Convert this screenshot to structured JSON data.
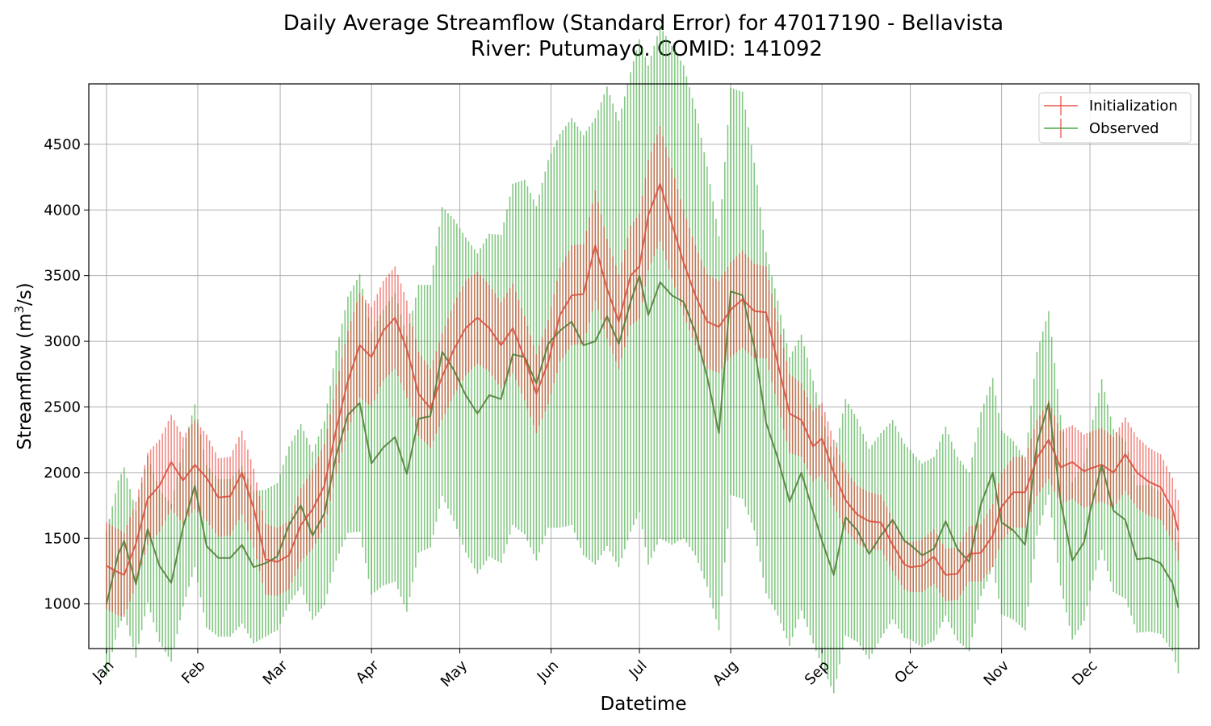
{
  "chart_data": {
    "type": "line",
    "title_line1": "Daily Average Streamflow (Standard Error) for 47017190 - Bellavista",
    "title_line2": "River: Putumayo. COMID: 141092",
    "xlabel": "Datetime",
    "ylabel": "Streamflow (m",
    "ylabel_sup": "3",
    "ylabel_end": "/s)",
    "ylim": [
      660,
      4960
    ],
    "yticks": [
      1000,
      1500,
      2000,
      2500,
      3000,
      3500,
      4000,
      4500
    ],
    "ytick_labels": [
      "1000",
      "1500",
      "2000",
      "2500",
      "3000",
      "3500",
      "4000",
      "4500"
    ],
    "xlim_days": [
      -6,
      371
    ],
    "month_days": [
      0,
      31,
      59,
      90,
      120,
      151,
      181,
      212,
      243,
      273,
      304,
      334
    ],
    "months": [
      "Jan",
      "Feb",
      "Mar",
      "Apr",
      "May",
      "Jun",
      "Jul",
      "Aug",
      "Sep",
      "Oct",
      "Nov",
      "Dec"
    ],
    "grid": true,
    "legend_position": "top-right",
    "series": [
      {
        "name": "Initialization",
        "color": "#e8463c",
        "x": [
          0,
          4,
          6,
          10,
          14,
          18,
          22,
          26,
          30,
          34,
          38,
          42,
          46,
          50,
          54,
          58,
          62,
          66,
          70,
          74,
          78,
          82,
          86,
          90,
          94,
          98,
          102,
          106,
          110,
          114,
          118,
          122,
          126,
          130,
          134,
          138,
          142,
          146,
          150,
          154,
          158,
          162,
          166,
          170,
          174,
          178,
          181,
          184,
          188,
          192,
          196,
          200,
          204,
          208,
          212,
          216,
          220,
          224,
          228,
          232,
          236,
          240,
          243,
          247,
          251,
          255,
          259,
          263,
          267,
          271,
          273,
          277,
          281,
          285,
          289,
          293,
          297,
          301,
          304,
          308,
          312,
          316,
          320,
          324,
          328,
          332,
          334,
          338,
          342,
          346,
          350,
          354,
          358,
          362,
          364
        ],
        "values": [
          1290,
          1240,
          1220,
          1460,
          1800,
          1900,
          2080,
          1940,
          2060,
          1960,
          1810,
          1820,
          2000,
          1730,
          1340,
          1320,
          1370,
          1600,
          1720,
          1900,
          2330,
          2700,
          2970,
          2880,
          3080,
          3180,
          2940,
          2600,
          2490,
          2730,
          2940,
          3100,
          3180,
          3100,
          2970,
          3100,
          2870,
          2600,
          2840,
          3200,
          3350,
          3360,
          3730,
          3400,
          3150,
          3500,
          3570,
          3960,
          4200,
          3900,
          3600,
          3350,
          3150,
          3110,
          3240,
          3320,
          3230,
          3220,
          2830,
          2450,
          2400,
          2200,
          2260,
          2000,
          1790,
          1680,
          1630,
          1620,
          1450,
          1300,
          1280,
          1290,
          1360,
          1220,
          1230,
          1380,
          1390,
          1520,
          1740,
          1850,
          1850,
          2110,
          2250,
          2040,
          2080,
          2010,
          2030,
          2060,
          2000,
          2140,
          2000,
          1930,
          1890,
          1720,
          1560
        ],
        "error": [
          330,
          330,
          320,
          320,
          350,
          350,
          360,
          330,
          340,
          330,
          300,
          300,
          320,
          300,
          270,
          260,
          260,
          280,
          300,
          320,
          340,
          380,
          400,
          380,
          380,
          390,
          370,
          320,
          300,
          330,
          350,
          360,
          350,
          330,
          330,
          340,
          320,
          300,
          320,
          360,
          380,
          380,
          420,
          380,
          360,
          380,
          400,
          420,
          440,
          420,
          400,
          380,
          360,
          350,
          360,
          370,
          360,
          350,
          320,
          300,
          280,
          270,
          270,
          250,
          230,
          220,
          220,
          210,
          200,
          190,
          190,
          200,
          210,
          200,
          200,
          210,
          220,
          240,
          260,
          270,
          270,
          290,
          300,
          280,
          280,
          280,
          280,
          280,
          270,
          280,
          270,
          260,
          250,
          240,
          230
        ]
      },
      {
        "name": "Observed",
        "color": "#3aa63a",
        "x": [
          0,
          4,
          6,
          10,
          14,
          18,
          22,
          26,
          30,
          34,
          38,
          42,
          46,
          50,
          54,
          58,
          62,
          66,
          70,
          74,
          78,
          82,
          86,
          90,
          94,
          98,
          102,
          106,
          110,
          114,
          118,
          122,
          126,
          130,
          134,
          138,
          142,
          146,
          150,
          154,
          158,
          162,
          166,
          170,
          174,
          178,
          181,
          184,
          188,
          192,
          196,
          200,
          204,
          208,
          212,
          216,
          220,
          224,
          228,
          232,
          236,
          240,
          243,
          247,
          251,
          255,
          259,
          263,
          267,
          271,
          273,
          277,
          281,
          285,
          289,
          293,
          297,
          301,
          304,
          308,
          312,
          316,
          320,
          324,
          328,
          332,
          334,
          338,
          342,
          346,
          350,
          354,
          358,
          362,
          364
        ],
        "values": [
          1000,
          1380,
          1480,
          1150,
          1570,
          1290,
          1160,
          1580,
          1900,
          1440,
          1350,
          1350,
          1450,
          1280,
          1310,
          1360,
          1600,
          1750,
          1520,
          1690,
          2130,
          2440,
          2530,
          2070,
          2190,
          2270,
          1990,
          2410,
          2430,
          2920,
          2780,
          2590,
          2450,
          2590,
          2560,
          2900,
          2880,
          2680,
          2980,
          3080,
          3150,
          2970,
          3000,
          3190,
          2980,
          3300,
          3500,
          3200,
          3450,
          3350,
          3300,
          3070,
          2730,
          2300,
          3380,
          3350,
          2960,
          2380,
          2110,
          1780,
          2000,
          1700,
          1480,
          1220,
          1660,
          1560,
          1380,
          1520,
          1640,
          1480,
          1450,
          1370,
          1420,
          1630,
          1420,
          1320,
          1760,
          2000,
          1620,
          1560,
          1450,
          2220,
          2530,
          1790,
          1330,
          1470,
          1700,
          2060,
          1710,
          1640,
          1340,
          1350,
          1310,
          1160,
          970
        ],
        "error": [
          550,
          560,
          560,
          560,
          560,
          580,
          600,
          600,
          620,
          620,
          600,
          600,
          600,
          580,
          560,
          560,
          600,
          620,
          640,
          700,
          800,
          900,
          980,
          1000,
          1050,
          1100,
          1050,
          1020,
          1000,
          1100,
          1150,
          1200,
          1220,
          1230,
          1250,
          1300,
          1350,
          1350,
          1400,
          1500,
          1550,
          1600,
          1700,
          1750,
          1700,
          1750,
          1800,
          1900,
          1950,
          1900,
          1800,
          1700,
          1600,
          1500,
          1550,
          1550,
          1400,
          1300,
          1200,
          1100,
          1050,
          1000,
          950,
          900,
          900,
          850,
          800,
          780,
          760,
          740,
          720,
          700,
          700,
          720,
          700,
          680,
          700,
          720,
          700,
          680,
          650,
          700,
          700,
          650,
          600,
          600,
          600,
          650,
          620,
          600,
          560,
          560,
          540,
          520,
          500
        ]
      }
    ]
  }
}
